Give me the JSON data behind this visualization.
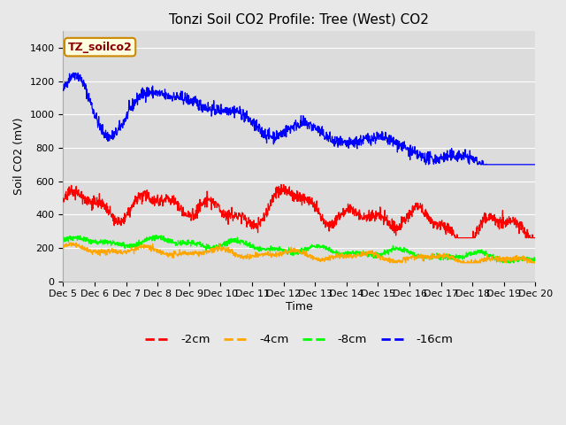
{
  "title": "Tonzi Soil CO2 Profile: Tree (West) CO2",
  "ylabel": "Soil CO2 (mV)",
  "xlabel": "Time",
  "annotation": "TZ_soilco2",
  "ylim": [
    0,
    1500
  ],
  "yticks": [
    0,
    200,
    400,
    600,
    800,
    1000,
    1200,
    1400
  ],
  "colors": {
    "-2cm": "#ff0000",
    "-4cm": "#ffa500",
    "-8cm": "#00ff00",
    "-16cm": "#0000ff"
  },
  "legend_labels": [
    "-2cm",
    "-4cm",
    "-8cm",
    "-16cm"
  ],
  "fig_bg_color": "#e8e8e8",
  "ax_bg_color": "#dcdcdc",
  "grid_color": "#ffffff",
  "n_points": 1500,
  "seed": 42
}
